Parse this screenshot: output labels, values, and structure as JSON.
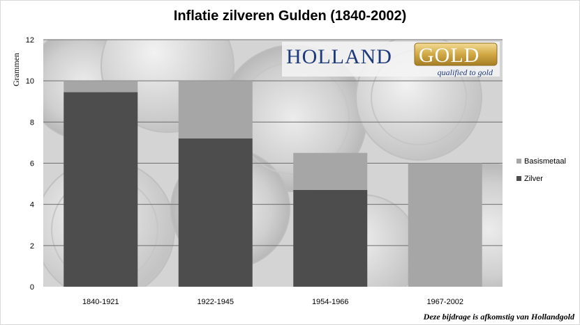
{
  "colors": {
    "zilver": "#4d4d4d",
    "basismetaal": "#a6a6a6",
    "plot_bg": "#d6d6d6",
    "gridline": "#6e6e6e"
  },
  "logo": {
    "holland": "HOLLAND",
    "gold": "GOLD",
    "tagline": "qualified to gold"
  },
  "credit": "Deze bijdrage is afkomstig van Hollandgold",
  "chart_data": {
    "type": "bar",
    "stacked": true,
    "title": "Inflatie zilveren Gulden (1840-2002)",
    "ylabel": "Grammen",
    "xlabel": "",
    "ylim": [
      0,
      12
    ],
    "yticks": [
      0,
      2,
      4,
      6,
      8,
      10,
      12
    ],
    "grid": true,
    "legend_position": "right",
    "categories": [
      "1840-1921",
      "1922-1945",
      "1954-1966",
      "1967-2002"
    ],
    "series": [
      {
        "name": "Zilver",
        "values": [
          9.45,
          7.2,
          4.7,
          0
        ],
        "color": "#4d4d4d"
      },
      {
        "name": "Basismetaal",
        "values": [
          0.55,
          2.8,
          1.8,
          6.0
        ],
        "color": "#a6a6a6"
      }
    ]
  }
}
